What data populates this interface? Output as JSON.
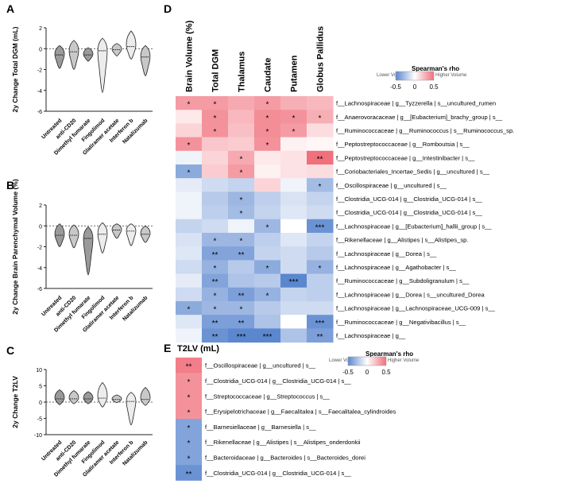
{
  "colors": {
    "low": "#5b87cf",
    "mid": "#ffffff",
    "high": "#f0707c",
    "violin_dark": "#9a9a9a",
    "violin_mid": "#c8c8c8",
    "violin_light": "#ececec"
  },
  "treatments": [
    "Untreated",
    "anti-CD20",
    "Dimethyl fumarate",
    "Fingolimod",
    "Glatiramer acetate",
    "Interferon b",
    "Natalizumab"
  ],
  "colorbar": {
    "title": "Spearman's rho",
    "low_label": "Lower Volume",
    "high_label": "Higher Volume",
    "ticks": [
      "-0.5",
      "0",
      "0.5"
    ]
  },
  "panel_letters": {
    "A": "A",
    "B": "B",
    "C": "C",
    "D": "D",
    "E": "E"
  },
  "chart_data": [
    {
      "panel": "A",
      "type": "violin",
      "ylabel": "2y Change Total DGM (mL)",
      "ylim": [
        -6,
        2
      ],
      "yticks": [
        "2",
        "0",
        "-2",
        "-4",
        "-6"
      ],
      "yvalues": [
        2,
        0,
        -2,
        -4,
        -6
      ],
      "reference_line": 0,
      "groups": [
        {
          "name": "Untreated",
          "min": -1.9,
          "max": 0.3,
          "median": -0.6
        },
        {
          "name": "anti-CD20",
          "min": -2.0,
          "max": 0.8,
          "median": -0.3
        },
        {
          "name": "Dimethyl fumarate",
          "min": -1.2,
          "max": 0.1,
          "median": -0.6
        },
        {
          "name": "Fingolimod",
          "min": -4.2,
          "max": 1.0,
          "median": -0.2
        },
        {
          "name": "Glatiramer acetate",
          "min": -0.7,
          "max": 0.5,
          "median": -0.1
        },
        {
          "name": "Interferon b",
          "min": -1.0,
          "max": 1.7,
          "median": 0.2
        },
        {
          "name": "Natalizumab",
          "min": -2.6,
          "max": 0.3,
          "median": -0.8
        }
      ]
    },
    {
      "panel": "B",
      "type": "violin",
      "ylabel": "2y Change Brain Parenchymal Volume (%)",
      "ylim": [
        -6,
        2
      ],
      "yticks": [
        "2",
        "0",
        "-2",
        "-4",
        "-6"
      ],
      "yvalues": [
        2,
        0,
        -2,
        -4,
        -6
      ],
      "reference_line": 0,
      "groups": [
        {
          "name": "Untreated",
          "min": -2.0,
          "max": 0.2,
          "median": -0.9
        },
        {
          "name": "anti-CD20",
          "min": -2.1,
          "max": 0.1,
          "median": -0.9
        },
        {
          "name": "Dimethyl fumarate",
          "min": -4.7,
          "max": -0.1,
          "median": -1.2
        },
        {
          "name": "Fingolimod",
          "min": -2.6,
          "max": 0.3,
          "median": -0.8
        },
        {
          "name": "Glatiramer acetate",
          "min": -1.2,
          "max": 0.2,
          "median": -0.4
        },
        {
          "name": "Interferon b",
          "min": -1.9,
          "max": 0.2,
          "median": -0.5
        },
        {
          "name": "Natalizumab",
          "min": -1.6,
          "max": 0.0,
          "median": -0.8
        }
      ]
    },
    {
      "panel": "C",
      "type": "violin",
      "ylabel": "2y Change T2LV",
      "ylim": [
        -10,
        10
      ],
      "yticks": [
        "10",
        "5",
        "0",
        "-5",
        "-10"
      ],
      "yvalues": [
        10,
        5,
        0,
        -5,
        -10
      ],
      "reference_line": 0,
      "groups": [
        {
          "name": "Untreated",
          "min": -0.8,
          "max": 3.8,
          "median": 1.0
        },
        {
          "name": "anti-CD20",
          "min": -0.5,
          "max": 3.5,
          "median": 1.0
        },
        {
          "name": "Dimethyl fumarate",
          "min": -0.5,
          "max": 3.2,
          "median": 1.0
        },
        {
          "name": "Fingolimod",
          "min": -1.5,
          "max": 6.0,
          "median": 1.2
        },
        {
          "name": "Glatiramer acetate",
          "min": -0.2,
          "max": 2.2,
          "median": 0.8
        },
        {
          "name": "Interferon b",
          "min": -7.0,
          "max": 3.0,
          "median": 0.2
        },
        {
          "name": "Natalizumab",
          "min": -1.0,
          "max": 4.5,
          "median": 0.8
        }
      ]
    },
    {
      "panel": "D",
      "type": "heatmap",
      "columns": [
        "Brain Volume (%)",
        "Total DGM",
        "Thalamus",
        "Caudate",
        "Putamen",
        "Globus Pallidus"
      ],
      "rows": [
        {
          "label": "f__Lachnospiraceae | g__Tyzzerella | s__uncultured_rumen",
          "values": [
            0.35,
            0.35,
            0.3,
            0.35,
            0.28,
            0.25
          ],
          "stars": [
            "*",
            "*",
            "",
            "*",
            "",
            ""
          ]
        },
        {
          "label": "f__Anaerovoracaceae | g__[Eubacterium]_brachy_group | s__",
          "values": [
            0.08,
            0.38,
            0.25,
            0.4,
            0.38,
            0.28
          ],
          "stars": [
            "",
            "*",
            "",
            "*",
            "*",
            "*"
          ]
        },
        {
          "label": "f__Ruminococcaceae | g__Ruminococcus | s__Ruminococcus_sp.",
          "values": [
            0.15,
            0.38,
            0.22,
            0.4,
            0.35,
            0.12
          ],
          "stars": [
            "",
            "*",
            "",
            "*",
            "*",
            ""
          ]
        },
        {
          "label": "f__Peptostreptococcaceae | g__Romboutsia | s__",
          "values": [
            0.38,
            0.2,
            0.18,
            0.38,
            0.05,
            0.03
          ],
          "stars": [
            "*",
            "",
            "",
            "*",
            "",
            ""
          ]
        },
        {
          "label": "f__Peptostreptococcaceae | g__Intestinibacter | s__",
          "values": [
            -0.05,
            0.15,
            0.3,
            0.08,
            0.1,
            0.5
          ],
          "stars": [
            "",
            "",
            "*",
            "",
            "",
            "**"
          ]
        },
        {
          "label": "f__Coriobacteriales_Incertae_Sedis | g__uncultured | s__",
          "values": [
            -0.35,
            0.18,
            0.35,
            0.05,
            0.1,
            0.12
          ],
          "stars": [
            "*",
            "",
            "*",
            "",
            "",
            ""
          ]
        },
        {
          "label": "f__Oscillospiraceae | g__uncultured | s__",
          "values": [
            -0.08,
            -0.15,
            -0.18,
            0.15,
            -0.05,
            -0.28
          ],
          "stars": [
            "",
            "",
            "",
            "",
            "",
            "*"
          ]
        },
        {
          "label": "f__Clostridia_UCG-014 | g__Clostridia_UCG-014 | s__",
          "values": [
            -0.05,
            -0.22,
            -0.3,
            -0.2,
            -0.12,
            -0.18
          ],
          "stars": [
            "",
            "",
            "*",
            "",
            "",
            ""
          ]
        },
        {
          "label": "f__Clostridia_UCG-014 | g__Clostridia_UCG-014 | s__",
          "values": [
            -0.05,
            -0.2,
            -0.28,
            -0.18,
            -0.1,
            -0.15
          ],
          "stars": [
            "",
            "",
            "*",
            "",
            "",
            ""
          ]
        },
        {
          "label": "f__Lachnospiraceae | g__[Eubacterium]_hallii_group | s__",
          "values": [
            -0.18,
            -0.15,
            -0.05,
            -0.3,
            0.0,
            -0.45
          ],
          "stars": [
            "",
            "",
            "",
            "*",
            "",
            "***"
          ]
        },
        {
          "label": "f__Rikenellaceae | g__Alistipes | s__Alistipes_sp.",
          "values": [
            -0.12,
            -0.3,
            -0.3,
            -0.2,
            -0.1,
            -0.18
          ],
          "stars": [
            "",
            "*",
            "*",
            "",
            "",
            ""
          ]
        },
        {
          "label": "f__Lachnospiraceae | g__Dorea | s__",
          "values": [
            -0.1,
            -0.38,
            -0.38,
            -0.18,
            -0.15,
            -0.22
          ],
          "stars": [
            "",
            "**",
            "**",
            "",
            "",
            ""
          ]
        },
        {
          "label": "f__Lachnospiraceae | g__Agathobacter | s__",
          "values": [
            -0.15,
            -0.32,
            -0.22,
            -0.35,
            -0.15,
            -0.32
          ],
          "stars": [
            "",
            "*",
            "",
            "*",
            "",
            "*"
          ]
        },
        {
          "label": "f__Ruminococcaceae | g__Subdoligranulum | s__",
          "values": [
            -0.08,
            -0.38,
            -0.25,
            -0.22,
            -0.5,
            -0.2
          ],
          "stars": [
            "",
            "**",
            "",
            "",
            "***",
            ""
          ]
        },
        {
          "label": "f__Lachnospiraceae | g__Dorea | s__uncultured_Dorea",
          "values": [
            -0.15,
            -0.32,
            -0.4,
            -0.32,
            -0.18,
            -0.2
          ],
          "stars": [
            "",
            "*",
            "**",
            "*",
            "",
            ""
          ]
        },
        {
          "label": "f__Lachnospiraceae | g__Lachnospiraceae_UCG-009 | s__",
          "values": [
            -0.35,
            -0.3,
            -0.3,
            -0.22,
            -0.15,
            -0.15
          ],
          "stars": [
            "*",
            "*",
            "*",
            "",
            "",
            ""
          ]
        },
        {
          "label": "f__Ruminococcaceae | g__Negativibacillus | s__",
          "values": [
            -0.1,
            -0.4,
            -0.4,
            -0.25,
            0.0,
            -0.45
          ],
          "stars": [
            "",
            "**",
            "**",
            "",
            "",
            "***"
          ]
        },
        {
          "label": "f__Lachnospiraceae | g__",
          "values": [
            -0.05,
            -0.45,
            -0.5,
            -0.55,
            -0.25,
            -0.4
          ],
          "stars": [
            "",
            "**",
            "***",
            "***",
            "",
            "**"
          ]
        }
      ]
    },
    {
      "panel": "E",
      "type": "heatmap",
      "columns": [
        "T2LV (mL)"
      ],
      "rows": [
        {
          "label": "f__Oscillospiraceae | g__uncultured | s__",
          "values": [
            0.45
          ],
          "stars": [
            "**"
          ]
        },
        {
          "label": "f__Clostridia_UCG-014 | g__Clostridia_UCG-014 | s__",
          "values": [
            0.38
          ],
          "stars": [
            "*"
          ]
        },
        {
          "label": "f__Streptococcaceae | g__Streptococcus | s__",
          "values": [
            0.38
          ],
          "stars": [
            "*"
          ]
        },
        {
          "label": "f__Erysipelotrichaceae | g__Faecalitalea | s__Faecalitalea_cylindroides",
          "values": [
            0.38
          ],
          "stars": [
            "*"
          ]
        },
        {
          "label": "f__Barnesiellaceae | g__Barnesiella | s__",
          "values": [
            -0.38
          ],
          "stars": [
            "*"
          ]
        },
        {
          "label": "f__Rikenellaceae | g__Alistipes | s__Alistipes_onderdonkii",
          "values": [
            -0.38
          ],
          "stars": [
            "*"
          ]
        },
        {
          "label": "f__Bacteroidaceae | g__Bacteroides | s__Bacteroides_dorei",
          "values": [
            -0.38
          ],
          "stars": [
            "*"
          ]
        },
        {
          "label": "f__Clostridia_UCG-014 | g__Clostridia_UCG-014 | s__",
          "values": [
            -0.45
          ],
          "stars": [
            "**"
          ]
        }
      ]
    }
  ]
}
